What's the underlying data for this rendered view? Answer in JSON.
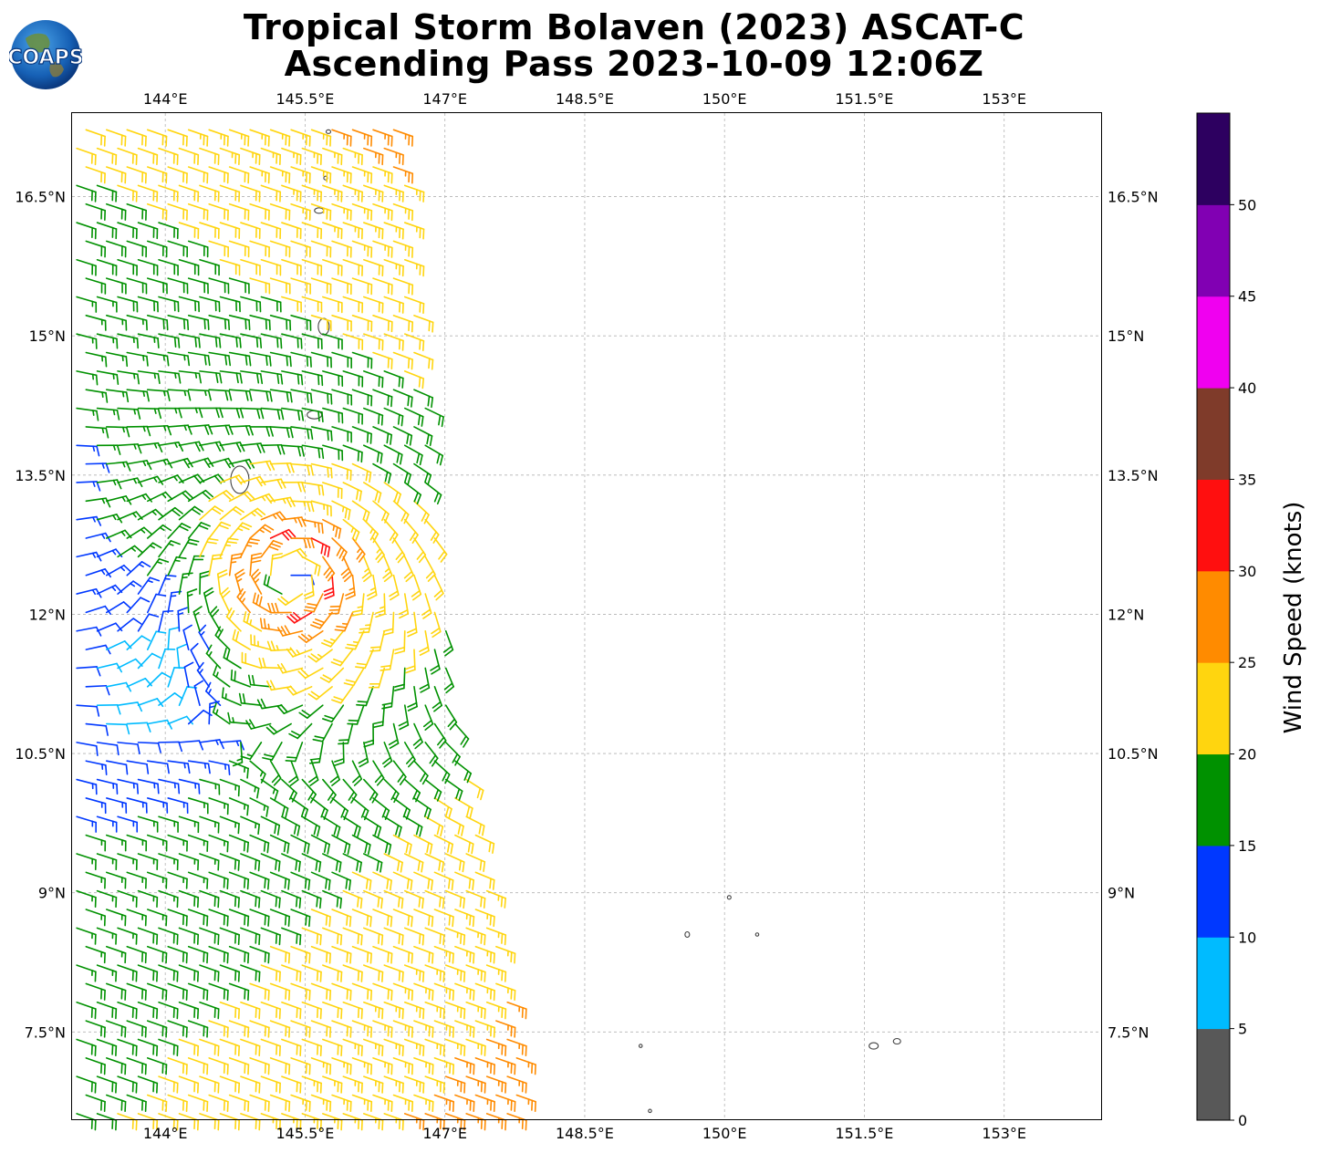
{
  "title": {
    "line1": "Tropical Storm Bolaven (2023) ASCAT-C",
    "line2": "Ascending Pass 2023-10-09 12:06Z"
  },
  "logo": {
    "text": "COAPS",
    "icon": "globe-icon"
  },
  "map": {
    "lon_range": [
      143.0,
      154.05
    ],
    "lat_range": [
      6.55,
      17.4
    ],
    "lon_ticks": [
      144,
      145.5,
      147,
      148.5,
      150,
      151.5,
      153
    ],
    "lat_ticks": [
      7.5,
      9,
      10.5,
      12,
      13.5,
      15,
      16.5
    ],
    "lon_tick_labels": [
      "144°E",
      "145.5°E",
      "147°E",
      "148.5°E",
      "150°E",
      "151.5°E",
      "153°E"
    ],
    "lat_tick_labels": [
      "7.5°N",
      "9°N",
      "10.5°N",
      "12°N",
      "13.5°N",
      "15°N",
      "16.5°N"
    ],
    "grid": "dashed",
    "storm_center": {
      "lon": 145.35,
      "lat": 12.4
    },
    "swath_east_edge": [
      [
        146.5,
        17.4
      ],
      [
        147.05,
        11.5
      ],
      [
        147.9,
        6.55
      ]
    ]
  },
  "colorbar": {
    "label": "Wind Speed (knots)",
    "ticks": [
      "0",
      "5",
      "10",
      "15",
      "20",
      "25",
      "30",
      "35",
      "40",
      "45",
      "50"
    ],
    "bins": [
      {
        "min": 0,
        "max": 5,
        "color": "#585858"
      },
      {
        "min": 5,
        "max": 10,
        "color": "#00bbff"
      },
      {
        "min": 10,
        "max": 15,
        "color": "#0038ff"
      },
      {
        "min": 15,
        "max": 20,
        "color": "#009100"
      },
      {
        "min": 20,
        "max": 25,
        "color": "#ffd50f"
      },
      {
        "min": 25,
        "max": 30,
        "color": "#ff8b00"
      },
      {
        "min": 30,
        "max": 35,
        "color": "#ff0f0f"
      },
      {
        "min": 35,
        "max": 40,
        "color": "#7f3b2a"
      },
      {
        "min": 40,
        "max": 45,
        "color": "#f000f0"
      },
      {
        "min": 45,
        "max": 50,
        "color": "#8100b3"
      },
      {
        "min": 50,
        "max": 55,
        "color": "#2d0060"
      }
    ]
  }
}
